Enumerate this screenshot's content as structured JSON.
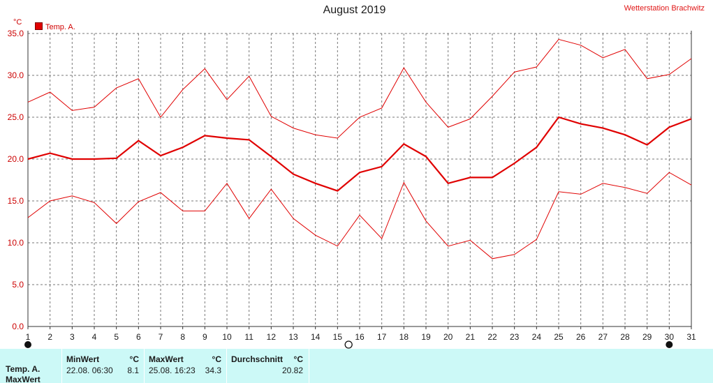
{
  "header": {
    "title": "August 2019",
    "station": "Wetterstation Brachwitz",
    "unit": "°C",
    "legend": "Temp. A."
  },
  "chart_data": {
    "type": "line",
    "title": "August 2019",
    "ylabel": "°C",
    "xlabel": "",
    "ylim": [
      0,
      35
    ],
    "y_ticks": [
      "0.0",
      "5.0",
      "10.0",
      "15.0",
      "20.0",
      "25.0",
      "30.0",
      "35.0"
    ],
    "x": [
      1,
      2,
      3,
      4,
      5,
      6,
      7,
      8,
      9,
      10,
      11,
      12,
      13,
      14,
      15,
      16,
      17,
      18,
      19,
      20,
      21,
      22,
      23,
      24,
      25,
      26,
      27,
      28,
      29,
      30,
      31
    ],
    "grid": true,
    "legend_position": "top-left",
    "series": [
      {
        "name": "Temp. A.",
        "role": "max",
        "color": "#e00000",
        "values": [
          26.8,
          28.0,
          25.8,
          26.2,
          28.5,
          29.6,
          25.0,
          28.3,
          30.8,
          27.1,
          29.9,
          25.1,
          23.7,
          22.9,
          22.5,
          25.0,
          26.1,
          30.9,
          26.8,
          23.8,
          24.8,
          27.5,
          30.4,
          31.0,
          34.3,
          33.6,
          32.1,
          33.1,
          29.6,
          30.1,
          32.0
        ]
      },
      {
        "name": "Temp. A.",
        "role": "mean",
        "color": "#e00000",
        "values": [
          20.0,
          20.7,
          20.0,
          20.0,
          20.1,
          22.2,
          20.4,
          21.4,
          22.8,
          22.5,
          22.3,
          20.3,
          18.2,
          17.1,
          16.2,
          18.4,
          19.1,
          21.8,
          20.3,
          17.1,
          17.8,
          17.8,
          19.5,
          21.4,
          25.0,
          24.2,
          23.7,
          22.9,
          21.7,
          23.8,
          24.8
        ]
      },
      {
        "name": "Temp. A.",
        "role": "min",
        "color": "#e00000",
        "values": [
          13.0,
          15.0,
          15.6,
          14.8,
          12.3,
          14.9,
          16.0,
          13.8,
          13.8,
          17.1,
          12.9,
          16.4,
          12.9,
          10.9,
          9.6,
          13.3,
          10.5,
          17.2,
          12.6,
          9.6,
          10.3,
          8.1,
          8.6,
          10.4,
          16.1,
          15.8,
          17.1,
          16.6,
          15.9,
          18.4,
          16.9
        ]
      }
    ],
    "moon_phases": [
      {
        "day": 1,
        "phase": "new"
      },
      {
        "day": 15.5,
        "phase": "full"
      },
      {
        "day": 30,
        "phase": "new"
      }
    ]
  },
  "stats": {
    "row_label": "Temp. A.",
    "row_label_2": "MaxWert",
    "min": {
      "header": "MinWert",
      "unit": "°C",
      "date": "22.08.  06:30",
      "value": "8.1"
    },
    "max": {
      "header": "MaxWert",
      "unit": "°C",
      "date": "25.08.  16:23",
      "value": "34.3"
    },
    "avg": {
      "header": "Durchschnitt",
      "unit": "°C",
      "value": "20.82"
    }
  }
}
